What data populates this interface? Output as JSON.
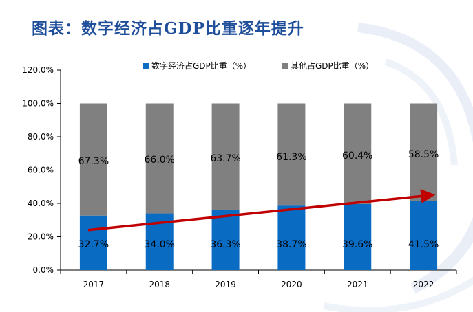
{
  "page": {
    "title": "图表：数字经济占GDP比重逐年提升"
  },
  "colors": {
    "digital": "#0a6bc2",
    "other": "#808080",
    "arrow": "#c00000",
    "title": "#1f4e9a"
  },
  "chart_data": {
    "type": "bar",
    "stacked": true,
    "categories": [
      "2017",
      "2018",
      "2019",
      "2020",
      "2021",
      "2022"
    ],
    "series": [
      {
        "name": "数字经济占GDP比重（%）",
        "values": [
          32.7,
          34.0,
          36.3,
          38.7,
          39.6,
          41.5
        ],
        "labels": [
          "32.7%",
          "34.0%",
          "36.3%",
          "38.7%",
          "39.6%",
          "41.5%"
        ]
      },
      {
        "name": "其他占GDP比重（%）",
        "values": [
          67.3,
          66.0,
          63.7,
          61.3,
          60.4,
          58.5
        ],
        "labels": [
          "67.3%",
          "66.0%",
          "63.7%",
          "61.3%",
          "60.4%",
          "58.5%"
        ]
      }
    ],
    "yticks": [
      "0.0%",
      "20.0%",
      "40.0%",
      "60.0%",
      "80.0%",
      "100.0%",
      "120.0%"
    ],
    "ylim": [
      0,
      120
    ],
    "legend_position": "top",
    "grid": false,
    "trend_arrow": {
      "from": [
        0,
        24
      ],
      "to": [
        5,
        45
      ]
    }
  }
}
